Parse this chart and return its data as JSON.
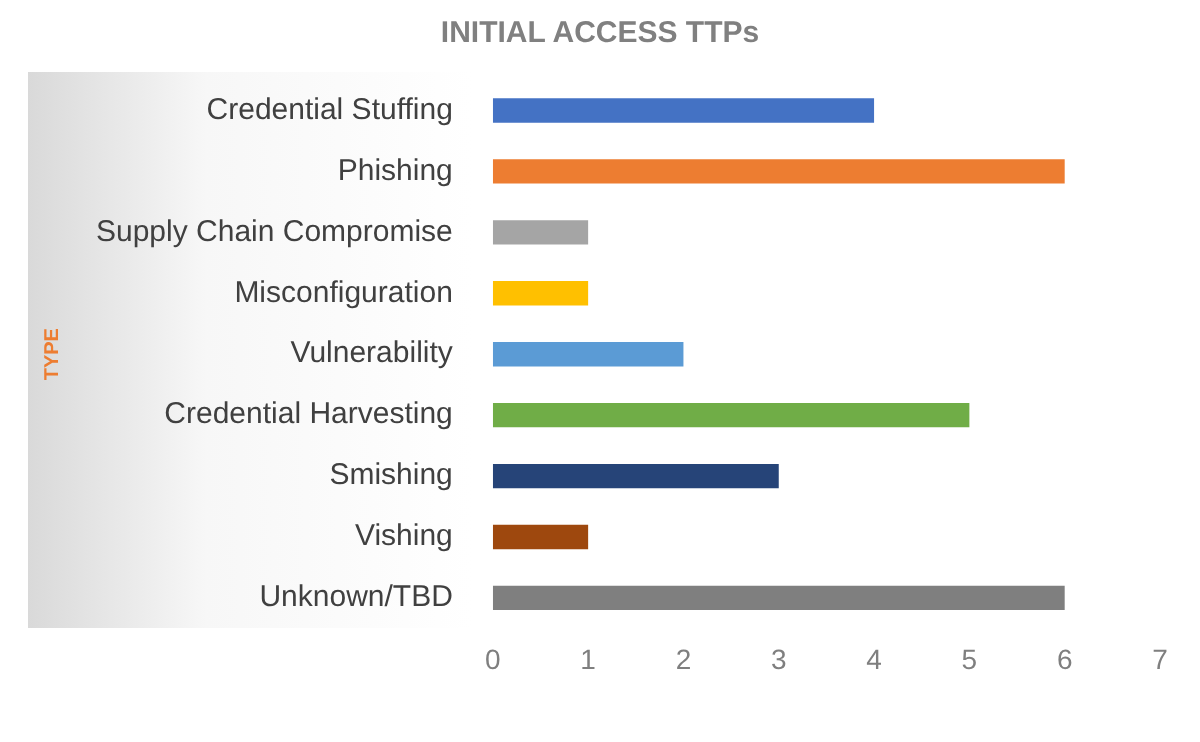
{
  "chart_data": {
    "type": "bar",
    "orientation": "horizontal",
    "title": "INITIAL ACCESS TTPs",
    "ylabel": "TYPE",
    "categories": [
      "Credential Stuffing",
      "Phishing",
      "Supply Chain Compromise",
      "Misconfiguration",
      "Vulnerability",
      "Credential Harvesting",
      "Smishing",
      "Vishing",
      "Unknown/TBD"
    ],
    "values": [
      4,
      6,
      1,
      1,
      2,
      5,
      3,
      1,
      6
    ],
    "colors": [
      "#4472c4",
      "#ed7d31",
      "#a5a5a5",
      "#ffc000",
      "#5b9bd5",
      "#70ad47",
      "#264478",
      "#9e480e",
      "#7f7f7f"
    ],
    "xlim": [
      0,
      7
    ],
    "xticks": [
      0,
      1,
      2,
      3,
      4,
      5,
      6,
      7
    ],
    "grid": false,
    "legend": false
  }
}
